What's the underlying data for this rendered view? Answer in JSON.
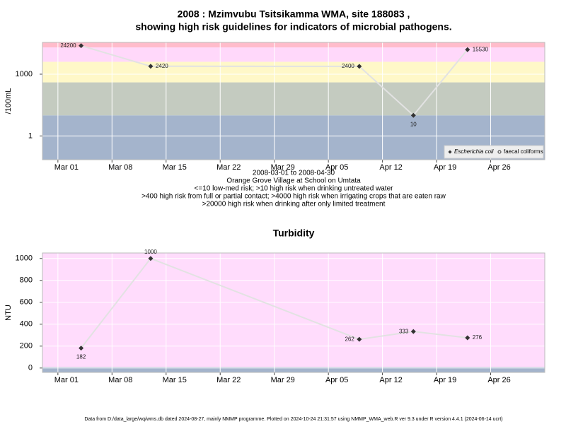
{
  "chart_data": [
    {
      "type": "line",
      "title": "2008 : Mzimvubu Tsitsikamma WMA, site 188083 ,",
      "subtitle": "showing high risk guidelines for indicators of microbial pathogens.",
      "notes": [
        "2008-03-01 to 2008-04-30",
        "Orange Grove Village at School on Umtata",
        "<=10 low-med risk; >10 high risk when drinking untreated water",
        ">400 high risk from full or partial contact; >4000 high risk when irrigating crops that are eaten raw",
        ">20000 high risk when drinking after only limited treatment"
      ],
      "y_label": "/100mL",
      "log_y": true,
      "grid": true,
      "legend": "lower right",
      "x": [
        "2008-03-04",
        "2008-03-13",
        "2008-04-09",
        "2008-04-16",
        "2008-04-23"
      ],
      "series": [
        {
          "name": "Escherichia coli",
          "color": "#333333",
          "values": [
            24200,
            2420,
            2400,
            10,
            15530
          ]
        },
        {
          "name": "faecal coliforms",
          "color": "#333333",
          "values": [
            null,
            null,
            null,
            null,
            null
          ]
        }
      ],
      "bands": [
        {
          "to": 10,
          "color": "#a4b4cc"
        },
        {
          "to": 400,
          "color": "#c4cbc0"
        },
        {
          "to": 4000,
          "color": "#fff8c8"
        },
        {
          "to": 20000,
          "color": "#ffd8fa"
        },
        {
          "to": null,
          "color": "#ffbccb"
        }
      ],
      "xlim": [
        "2008-02-28",
        "2008-05-03"
      ],
      "xticks": [
        {
          "value": "2008-03-01",
          "label": "Mar 01"
        },
        {
          "value": "2008-03-08",
          "label": "Mar 08"
        },
        {
          "value": "2008-03-15",
          "label": "Mar 15"
        },
        {
          "value": "2008-03-22",
          "label": "Mar 22"
        },
        {
          "value": "2008-03-29",
          "label": "Mar 29"
        },
        {
          "value": "2008-04-05",
          "label": "Apr 05"
        },
        {
          "value": "2008-04-12",
          "label": "Apr 12"
        },
        {
          "value": "2008-04-19",
          "label": "Apr 19"
        },
        {
          "value": "2008-04-26",
          "label": "Apr 26"
        }
      ],
      "ylim": [
        0.07,
        35000
      ],
      "yticks": [
        1,
        1000
      ]
    },
    {
      "type": "line",
      "title": "Turbidity",
      "y_label": "NTU",
      "log_y": false,
      "grid": true,
      "x": [
        "2008-03-04",
        "2008-03-13",
        "2008-04-09",
        "2008-04-16",
        "2008-04-23"
      ],
      "series": [
        {
          "name": "Turbidity",
          "color": "#333333",
          "values": [
            182,
            1000,
            262,
            333,
            276
          ]
        }
      ],
      "bands": [
        {
          "to": 10,
          "color": "#a4b4cc"
        },
        {
          "to": null,
          "color": "#ffdcfc"
        }
      ],
      "xlim": [
        "2008-02-28",
        "2008-05-03"
      ],
      "xticks": [
        {
          "value": "2008-03-01",
          "label": "Mar 01"
        },
        {
          "value": "2008-03-08",
          "label": "Mar 08"
        },
        {
          "value": "2008-03-15",
          "label": "Mar 15"
        },
        {
          "value": "2008-03-22",
          "label": "Mar 22"
        },
        {
          "value": "2008-03-29",
          "label": "Mar 29"
        },
        {
          "value": "2008-04-05",
          "label": "Apr 05"
        },
        {
          "value": "2008-04-12",
          "label": "Apr 12"
        },
        {
          "value": "2008-04-19",
          "label": "Apr 19"
        },
        {
          "value": "2008-04-26",
          "label": "Apr 26"
        }
      ],
      "ylim": [
        -40,
        1050
      ],
      "yticks": [
        0,
        200,
        400,
        600,
        800,
        1000
      ]
    }
  ],
  "footer": "Data from D:/data_large/wq/wms.db dated 2024-08-27, mainly NMMP programme. Plotted on 2024-10-24 21:31:57 using NMMP_WMA_web.R ver 9.3 under R version 4.4.1 (2024-06-14 ucrt)"
}
